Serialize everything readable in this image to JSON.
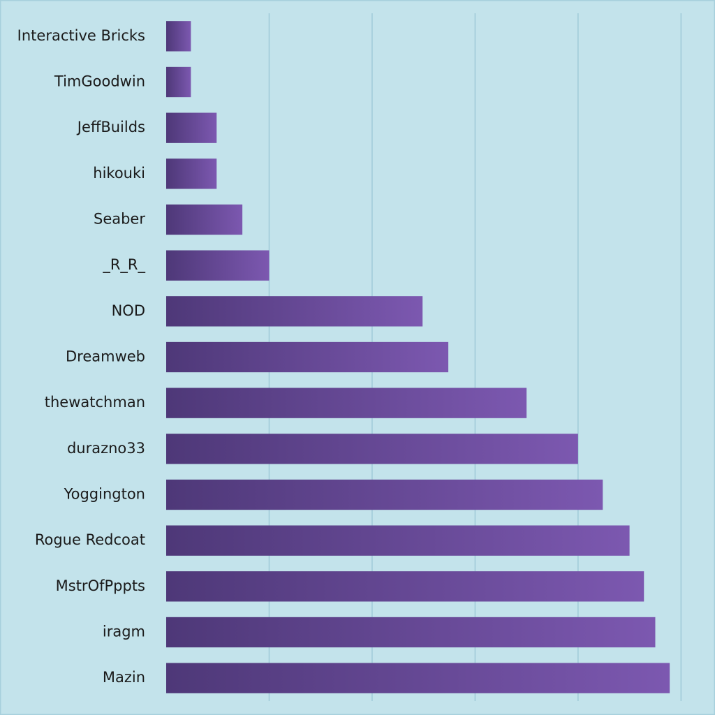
{
  "chart_data": {
    "type": "barh",
    "categories": [
      "Interactive Bricks",
      "TimGoodwin",
      "JeffBuilds",
      "hikouki",
      "Seaber",
      "_R_R_",
      "NOD",
      "Dreamweb",
      "thewatchman",
      "durazno33",
      "Yoggington",
      "Rogue Redcoat",
      "MstrOfPppts",
      "iragm",
      "Mazin"
    ],
    "values": [
      2.4,
      2.4,
      4.9,
      4.9,
      7.4,
      10,
      24.9,
      27.4,
      35,
      40,
      42.4,
      45,
      46.4,
      47.5,
      48.9
    ],
    "xlim": [
      0,
      53.3
    ],
    "xticks": [
      10,
      20,
      30,
      40,
      50
    ],
    "grid": true,
    "colors": [
      "#4e3878",
      "#7c58b0"
    ]
  }
}
